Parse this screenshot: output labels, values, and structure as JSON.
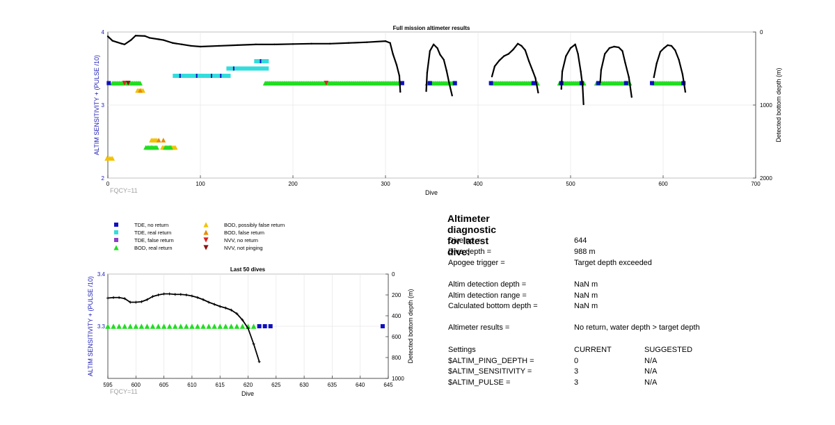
{
  "chart_data": [
    {
      "type": "scatter",
      "title": "Full mission altimeter results",
      "xlabel": "Dive",
      "ylabel": "ALTIM SENSITIVITY + (PULSE /10)",
      "ylabel_right": "Detected bottom depth (m)",
      "xlim": [
        0,
        700
      ],
      "ylim": [
        2,
        4
      ],
      "ylim_right": [
        2000,
        0
      ],
      "x_ticks": [
        "0",
        "100",
        "200",
        "300",
        "400",
        "500",
        "600",
        "700"
      ],
      "y_ticks": [
        "2",
        "3",
        "4"
      ],
      "y_right_ticks": [
        "0",
        "1000",
        "2000"
      ],
      "annotation": "FQCY=11",
      "depth_series": [
        [
          0,
          60
        ],
        [
          5,
          120
        ],
        [
          10,
          140
        ],
        [
          15,
          160
        ],
        [
          18,
          170
        ],
        [
          25,
          110
        ],
        [
          30,
          50
        ],
        [
          40,
          55
        ],
        [
          45,
          80
        ],
        [
          55,
          100
        ],
        [
          60,
          110
        ],
        [
          70,
          150
        ],
        [
          80,
          170
        ],
        [
          90,
          190
        ],
        [
          100,
          200
        ],
        [
          120,
          190
        ],
        [
          140,
          180
        ],
        [
          160,
          170
        ],
        [
          180,
          170
        ],
        [
          200,
          165
        ],
        [
          220,
          160
        ],
        [
          240,
          160
        ],
        [
          260,
          150
        ],
        [
          280,
          140
        ],
        [
          300,
          125
        ],
        [
          305,
          150
        ],
        [
          308,
          300
        ],
        [
          312,
          450
        ],
        [
          315,
          600
        ],
        [
          316,
          820
        ]
      ],
      "depth_arches": [
        [
          [
            344,
            810
          ],
          [
            345,
            560
          ],
          [
            348,
            260
          ],
          [
            352,
            170
          ],
          [
            356,
            220
          ],
          [
            359,
            310
          ],
          [
            363,
            380
          ],
          [
            366,
            530
          ],
          [
            369,
            710
          ],
          [
            372,
            870
          ]
        ],
        [
          [
            415,
            610
          ],
          [
            418,
            470
          ],
          [
            423,
            390
          ],
          [
            428,
            330
          ],
          [
            433,
            300
          ],
          [
            438,
            240
          ],
          [
            443,
            160
          ],
          [
            447,
            190
          ],
          [
            451,
            250
          ],
          [
            455,
            400
          ],
          [
            459,
            530
          ],
          [
            462,
            630
          ],
          [
            465,
            830
          ]
        ],
        [
          [
            490,
            780
          ],
          [
            491,
            540
          ],
          [
            495,
            330
          ],
          [
            500,
            220
          ],
          [
            505,
            170
          ],
          [
            508,
            300
          ],
          [
            511,
            540
          ],
          [
            513,
            740
          ],
          [
            514,
            990
          ]
        ],
        [
          [
            532,
            690
          ],
          [
            533,
            520
          ],
          [
            537,
            300
          ],
          [
            542,
            220
          ],
          [
            547,
            200
          ],
          [
            552,
            210
          ],
          [
            556,
            260
          ],
          [
            559,
            420
          ],
          [
            563,
            620
          ],
          [
            566,
            890
          ]
        ],
        [
          [
            590,
            620
          ],
          [
            593,
            430
          ],
          [
            597,
            270
          ],
          [
            601,
            220
          ],
          [
            605,
            180
          ],
          [
            609,
            190
          ],
          [
            613,
            250
          ],
          [
            617,
            380
          ],
          [
            621,
            580
          ],
          [
            624,
            820
          ]
        ]
      ],
      "bod_real_segments": [
        [
          5,
          35
        ],
        [
          170,
          315
        ],
        [
          345,
          375
        ],
        [
          415,
          465
        ],
        [
          488,
          515
        ],
        [
          528,
          565
        ],
        [
          590,
          622
        ]
      ],
      "tde_no_return_points": [
        1,
        318,
        348,
        375,
        414,
        460,
        490,
        512,
        530,
        560,
        588,
        622
      ],
      "tde_real_return_segments": [
        [
          72,
          132
        ],
        [
          130,
          160
        ],
        [
          160,
          172
        ],
        [
          160,
          172
        ]
      ],
      "tde_real_return_y": [
        3.4,
        3.5,
        3.5,
        3.6
      ],
      "bod_possibly_false_points": [
        [
          2,
          2.27
        ],
        [
          35,
          3.2
        ],
        [
          50,
          2.52
        ],
        [
          62,
          2.42
        ],
        [
          70,
          2.42
        ]
      ],
      "bod_false_points": [
        [
          55,
          2.52
        ],
        [
          35,
          3.2
        ],
        [
          60,
          2.52
        ]
      ],
      "nvv_no_return_points": [
        [
          18,
          3.3
        ],
        [
          236,
          3.3
        ]
      ],
      "nvv_not_pinging_points": [
        [
          22,
          3.3
        ]
      ],
      "green_low_points": [
        [
          44,
          2.42
        ],
        [
          50,
          2.42
        ],
        [
          65,
          2.42
        ]
      ],
      "grid": true
    },
    {
      "type": "scatter",
      "title": "Last 50 dives",
      "xlabel": "Dive",
      "ylabel": "ALTIM SENSITIVITY + (PULSE /10)",
      "ylabel_right": "Detected bottom depth (m)",
      "xlim": [
        595,
        645
      ],
      "ylim": [
        3.2,
        3.4
      ],
      "ylim_right": [
        1000,
        0
      ],
      "x_ticks": [
        "595",
        "600",
        "605",
        "610",
        "615",
        "620",
        "625",
        "630",
        "635",
        "640",
        "645"
      ],
      "y_ticks": [
        "3.3",
        "3.4"
      ],
      "y_right_ticks": [
        "0",
        "200",
        "400",
        "600",
        "800",
        "1000"
      ],
      "annotation": "FQCY=11",
      "depth_series": [
        [
          595,
          230
        ],
        [
          596,
          225
        ],
        [
          597,
          225
        ],
        [
          598,
          235
        ],
        [
          599,
          270
        ],
        [
          600,
          270
        ],
        [
          601,
          265
        ],
        [
          602,
          245
        ],
        [
          603,
          215
        ],
        [
          604,
          200
        ],
        [
          605,
          190
        ],
        [
          606,
          190
        ],
        [
          607,
          195
        ],
        [
          608,
          195
        ],
        [
          609,
          200
        ],
        [
          610,
          210
        ],
        [
          611,
          225
        ],
        [
          612,
          245
        ],
        [
          613,
          270
        ],
        [
          614,
          290
        ],
        [
          615,
          310
        ],
        [
          616,
          325
        ],
        [
          617,
          345
        ],
        [
          618,
          380
        ],
        [
          619,
          440
        ],
        [
          620,
          520
        ],
        [
          621,
          670
        ],
        [
          622,
          840
        ]
      ],
      "bod_real_points": [
        595,
        596,
        597,
        598,
        599,
        600,
        601,
        602,
        603,
        604,
        605,
        606,
        607,
        608,
        609,
        610,
        611,
        612,
        613,
        614,
        615,
        616,
        617,
        618,
        619,
        620,
        621
      ],
      "tde_no_return_points": [
        622,
        623,
        624,
        644
      ],
      "grid": true
    }
  ],
  "legend": {
    "col1": [
      {
        "label": "TDE, no return",
        "symbol": "square",
        "color": "#1010c0"
      },
      {
        "label": "TDE, real return",
        "symbol": "square",
        "color": "#33dddd"
      },
      {
        "label": "TDE, false return",
        "symbol": "square",
        "color": "#8a3fc8"
      },
      {
        "label": "BOD, real return",
        "symbol": "triangle-up",
        "color": "#22dd22"
      }
    ],
    "col2": [
      {
        "label": "BOD, possibly false return",
        "symbol": "triangle-up",
        "color": "#f2c200"
      },
      {
        "label": "BOD, false return",
        "symbol": "triangle-up",
        "color": "#e88a00"
      },
      {
        "label": "NVV, no return",
        "symbol": "triangle-down",
        "color": "#dd2222"
      },
      {
        "label": "NVV, not pinging",
        "symbol": "triangle-down",
        "color": "#8b1010"
      }
    ]
  },
  "diagnostic": {
    "title": "Altimeter diagnostic for latest dive:",
    "rows": [
      {
        "label": "Dive no =",
        "value": "644"
      },
      {
        "label": "Dive depth =",
        "value": "988 m"
      },
      {
        "label": "Apogee trigger =",
        "value": "Target depth exceeded"
      },
      {
        "label": "Altim detection depth =",
        "value": "NaN m"
      },
      {
        "label": "Altim detection range =",
        "value": "NaN m"
      },
      {
        "label": "Calculated bottom depth =",
        "value": "NaN m"
      },
      {
        "label": "Altimeter results =",
        "value": "No return, water depth > target depth"
      }
    ],
    "settings_header": {
      "label": "Settings",
      "current": "CURRENT",
      "suggested": "SUGGESTED"
    },
    "settings": [
      {
        "label": "$ALTIM_PING_DEPTH =",
        "current": "0",
        "suggested": "N/A"
      },
      {
        "label": "$ALTIM_SENSITIVITY =",
        "current": "3",
        "suggested": "N/A"
      },
      {
        "label": "$ALTIM_PULSE =",
        "current": "3",
        "suggested": "N/A"
      }
    ]
  },
  "colors": {
    "axis_blue": "#1a1ab5",
    "annotation_gray": "#a0a0a0",
    "grid": "#e6e6e6"
  }
}
